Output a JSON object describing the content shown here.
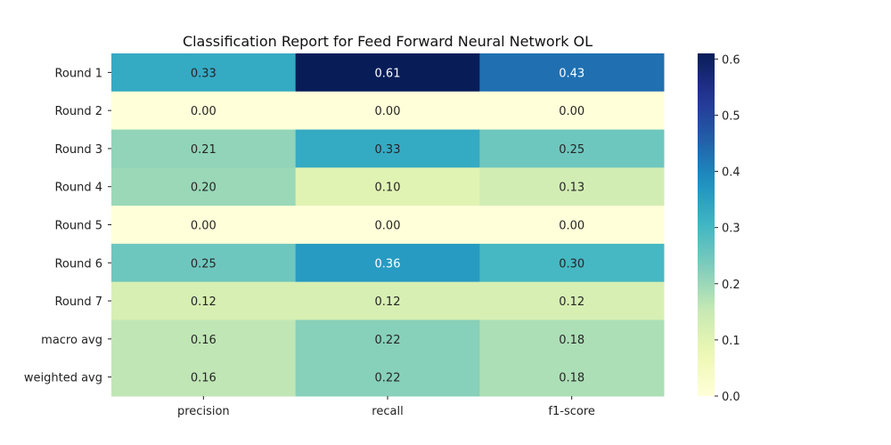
{
  "chart_data": {
    "type": "heatmap",
    "title": "Classification Report for Feed Forward Neural Network OL",
    "xlabel": "",
    "ylabel": "",
    "columns": [
      "precision",
      "recall",
      "f1-score"
    ],
    "rows": [
      "Round 1",
      "Round 2",
      "Round 3",
      "Round 4",
      "Round 5",
      "Round 6",
      "Round 7",
      "macro avg",
      "weighted avg"
    ],
    "values": [
      [
        0.33,
        0.61,
        0.43
      ],
      [
        0.0,
        0.0,
        0.0
      ],
      [
        0.21,
        0.33,
        0.25
      ],
      [
        0.2,
        0.1,
        0.13
      ],
      [
        0.0,
        0.0,
        0.0
      ],
      [
        0.25,
        0.36,
        0.3
      ],
      [
        0.12,
        0.12,
        0.12
      ],
      [
        0.16,
        0.22,
        0.18
      ],
      [
        0.16,
        0.22,
        0.18
      ]
    ],
    "value_format": "0.00",
    "vmin": 0.0,
    "vmax": 0.61,
    "colormap": "YlGnBu",
    "colorbar_ticks": [
      0.0,
      0.1,
      0.2,
      0.3,
      0.4,
      0.5,
      0.6
    ],
    "colorbar_tick_labels": [
      "0.0",
      "0.1",
      "0.2",
      "0.3",
      "0.4",
      "0.5",
      "0.6"
    ]
  }
}
